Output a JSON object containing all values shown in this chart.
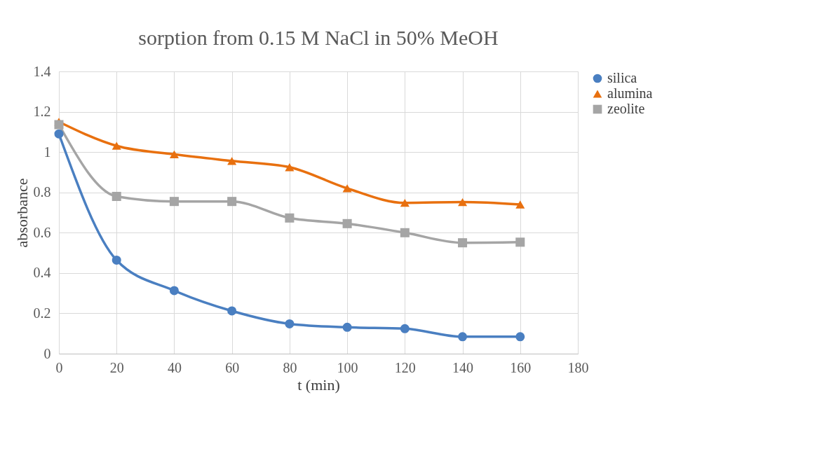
{
  "chart_data": {
    "type": "line",
    "title": "sorption from 0.15 M NaCl in 50% MeOH",
    "xlabel": "t (min)",
    "ylabel": "absorbance",
    "x": [
      0,
      20,
      40,
      60,
      80,
      100,
      120,
      140,
      160
    ],
    "series": [
      {
        "name": "silica",
        "color": "#4a7fc1",
        "marker": "circle",
        "values": [
          1.09,
          0.464,
          0.313,
          0.212,
          0.148,
          0.131,
          0.124,
          0.084,
          0.084
        ]
      },
      {
        "name": "alumina",
        "color": "#e8700f",
        "marker": "triangle",
        "values": [
          1.15,
          1.031,
          0.989,
          0.956,
          0.925,
          0.82,
          0.748,
          0.752,
          0.74
        ]
      },
      {
        "name": "zeolite",
        "color": "#a5a5a5",
        "marker": "square",
        "values": [
          1.136,
          0.78,
          0.755,
          0.755,
          0.673,
          0.645,
          0.6,
          0.55,
          0.553
        ]
      }
    ],
    "xlim": [
      0,
      180
    ],
    "xticks": [
      0,
      20,
      40,
      60,
      80,
      100,
      120,
      140,
      160,
      180
    ],
    "ylim": [
      0,
      1.4
    ],
    "yticks": [
      0,
      0.2,
      0.4,
      0.6,
      0.8,
      1,
      1.2,
      1.4
    ],
    "grid": true,
    "legend": "right",
    "line_style": "solid"
  }
}
